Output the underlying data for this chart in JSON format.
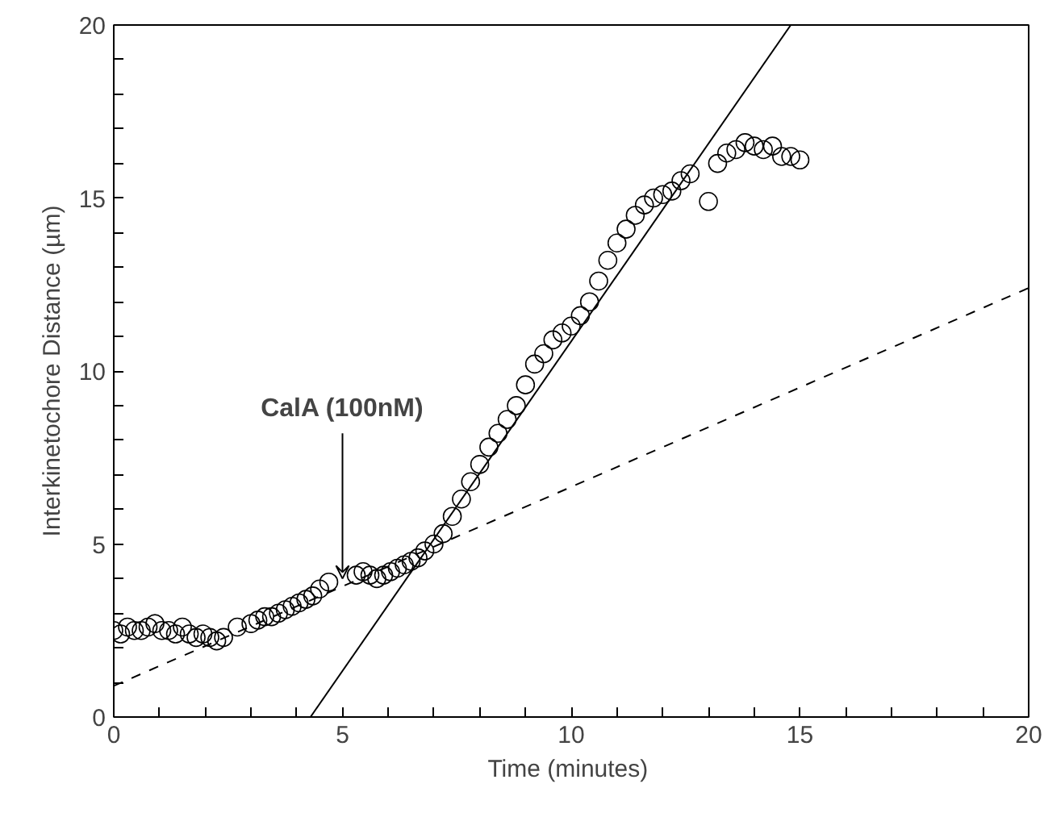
{
  "chart_data": {
    "type": "scatter",
    "xlabel": "Time  (minutes)",
    "ylabel": "Interkinetochore Distance (µm)",
    "xlim": [
      0,
      20
    ],
    "ylim": [
      0,
      20
    ],
    "xticks": [
      0,
      {
        "value": 1,
        "label": null
      },
      {
        "value": 2,
        "label": null
      },
      {
        "value": 3,
        "label": null
      },
      {
        "value": 4,
        "label": null
      },
      5,
      {
        "value": 6,
        "label": null
      },
      {
        "value": 7,
        "label": null
      },
      {
        "value": 8,
        "label": null
      },
      {
        "value": 9,
        "label": null
      },
      10,
      {
        "value": 11,
        "label": null
      },
      {
        "value": 12,
        "label": null
      },
      {
        "value": 13,
        "label": null
      },
      {
        "value": 14,
        "label": null
      },
      15,
      {
        "value": 16,
        "label": null
      },
      {
        "value": 17,
        "label": null
      },
      {
        "value": 18,
        "label": null
      },
      {
        "value": 19,
        "label": null
      },
      20
    ],
    "yticks": [
      0,
      {
        "value": 1,
        "label": null
      },
      {
        "value": 2,
        "label": null
      },
      {
        "value": 3,
        "label": null
      },
      {
        "value": 4,
        "label": null
      },
      5,
      {
        "value": 6,
        "label": null
      },
      {
        "value": 7,
        "label": null
      },
      {
        "value": 8,
        "label": null
      },
      {
        "value": 9,
        "label": null
      },
      10,
      {
        "value": 11,
        "label": null
      },
      {
        "value": 12,
        "label": null
      },
      {
        "value": 13,
        "label": null
      },
      {
        "value": 14,
        "label": null
      },
      15,
      {
        "value": 16,
        "label": null
      },
      {
        "value": 17,
        "label": null
      },
      {
        "value": 18,
        "label": null
      },
      {
        "value": 19,
        "label": null
      },
      20
    ],
    "grid": false,
    "annotations": [
      {
        "text": "CalA (100nM)",
        "x": 5,
        "y": 4
      }
    ],
    "series": [
      {
        "marker": "circle",
        "color": "#000000",
        "x": [
          0,
          0.15,
          0.3,
          0.45,
          0.6,
          0.75,
          0.9,
          1.05,
          1.2,
          1.35,
          1.5,
          1.65,
          1.8,
          1.95,
          2.1,
          2.25,
          2.4,
          2.7,
          3.0,
          3.15,
          3.3,
          3.45,
          3.6,
          3.75,
          3.9,
          4.05,
          4.2,
          4.35,
          4.5,
          4.7,
          5.3,
          5.45,
          5.6,
          5.75,
          5.9,
          6.05,
          6.2,
          6.35,
          6.5,
          6.65,
          6.8,
          7.0,
          7.2,
          7.4,
          7.6,
          7.8,
          8.0,
          8.2,
          8.4,
          8.6,
          8.8,
          9.0,
          9.2,
          9.4,
          9.6,
          9.8,
          10.0,
          10.2,
          10.4,
          10.6,
          10.8,
          11.0,
          11.2,
          11.4,
          11.6,
          11.8,
          12.0,
          12.2,
          12.4,
          12.6,
          13.0,
          13.2,
          13.4,
          13.6,
          13.8,
          14.0,
          14.2,
          14.4,
          14.6,
          14.8,
          15.0
        ],
        "values": [
          2.5,
          2.4,
          2.6,
          2.5,
          2.5,
          2.6,
          2.7,
          2.5,
          2.5,
          2.4,
          2.6,
          2.4,
          2.3,
          2.4,
          2.3,
          2.2,
          2.3,
          2.6,
          2.7,
          2.8,
          2.9,
          2.9,
          3.0,
          3.1,
          3.2,
          3.3,
          3.4,
          3.5,
          3.7,
          3.9,
          4.1,
          4.2,
          4.1,
          4.0,
          4.1,
          4.2,
          4.3,
          4.4,
          4.5,
          4.6,
          4.8,
          5.0,
          5.3,
          5.8,
          6.3,
          6.8,
          7.3,
          7.8,
          8.2,
          8.6,
          9.0,
          9.6,
          10.2,
          10.5,
          10.9,
          11.1,
          11.3,
          11.6,
          12.0,
          12.6,
          13.2,
          13.7,
          14.1,
          14.5,
          14.8,
          15.0,
          15.1,
          15.2,
          15.5,
          15.7,
          14.9,
          16.0,
          16.3,
          16.4,
          16.6,
          16.5,
          16.4,
          16.5,
          16.2,
          16.2,
          16.1
        ]
      },
      {
        "type": "line",
        "marker": "none",
        "color": "#000000",
        "line_style": "solid",
        "x": [
          4.3,
          14.8
        ],
        "values": [
          0,
          20
        ]
      },
      {
        "type": "line",
        "marker": "none",
        "color": "#000000",
        "line_style": "dashed",
        "x": [
          0,
          20
        ],
        "values": [
          0.9,
          12.4
        ]
      }
    ]
  }
}
